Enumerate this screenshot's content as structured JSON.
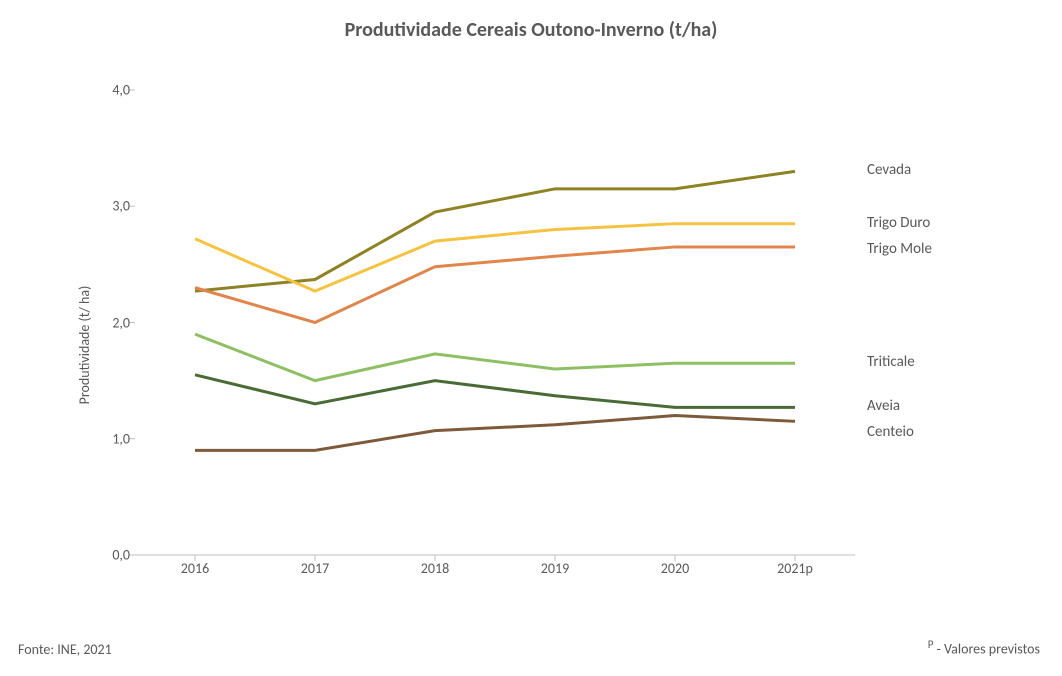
{
  "title": "Produtividade Cereais Outono-Inverno (t/ha)",
  "y_axis_label": "Produtividade  (t/ ha)",
  "source_label": "Fonte: INE, 2021",
  "footnote_prefix": "P",
  "footnote_text": " - Valores previstos",
  "chart": {
    "type": "line",
    "background_color": "#ffffff",
    "axis_color": "#bfbfbf",
    "text_color": "#595959",
    "title_fontsize": 20,
    "label_fontsize": 14,
    "series_label_fontsize": 15,
    "line_width": 3,
    "x_categories": [
      "2016",
      "2017",
      "2018",
      "2019",
      "2020",
      "2021p"
    ],
    "ylim": [
      0.0,
      4.0
    ],
    "ytick_step": 1.0,
    "y_ticks": [
      "0,0",
      "1,0",
      "2,0",
      "3,0",
      "4,0"
    ],
    "series": [
      {
        "name": "Cevada",
        "label": "Cevada",
        "color": "#8d8224",
        "values": [
          2.27,
          2.37,
          2.95,
          3.15,
          3.15,
          3.3
        ]
      },
      {
        "name": "Trigo Duro",
        "label": "Trigo Duro",
        "color": "#f5c342",
        "values": [
          2.72,
          2.27,
          2.7,
          2.8,
          2.85,
          2.85
        ]
      },
      {
        "name": "Trigo Mole",
        "label": "Trigo Mole",
        "color": "#e0864d",
        "values": [
          2.3,
          2.0,
          2.48,
          2.57,
          2.65,
          2.65
        ]
      },
      {
        "name": "Triticale",
        "label": "Triticale",
        "color": "#8fbf63",
        "values": [
          1.9,
          1.5,
          1.73,
          1.6,
          1.65,
          1.65
        ]
      },
      {
        "name": "Aveia",
        "label": "Aveia",
        "color": "#4a6b36",
        "values": [
          1.55,
          1.3,
          1.5,
          1.37,
          1.27,
          1.27
        ]
      },
      {
        "name": "Centeio",
        "label": "Centeio",
        "color": "#7d5a3a",
        "values": [
          0.9,
          0.9,
          1.07,
          1.12,
          1.2,
          1.15
        ]
      }
    ]
  }
}
